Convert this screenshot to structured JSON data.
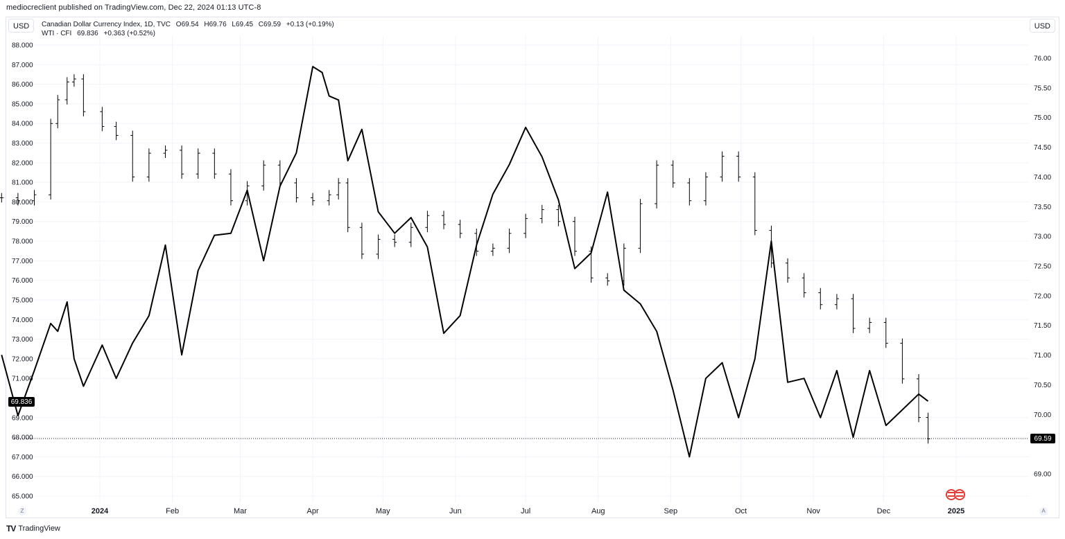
{
  "header": {
    "published": "mediocreclient published on TradingView.com, Dec 22, 2024 01:13 UTC-8"
  },
  "currency_left": "USD",
  "currency_right": "USD",
  "legend": {
    "line1": {
      "name": "Canadian Dollar Currency Index, 1D, TVC",
      "open": "O69.54",
      "high": "H69.76",
      "low": "L69.45",
      "close": "C69.59",
      "change": "+0.13 (+0.19%)"
    },
    "line2": {
      "name": "WTI · CFI",
      "last": "69.836",
      "change": "+0.363 (+0.52%)"
    }
  },
  "badges": {
    "left_value": "69.836",
    "right_value": "69.59"
  },
  "axis_buttons": {
    "left": "Z",
    "right": "A"
  },
  "footer": {
    "brand": "TradingView",
    "logo": "TV"
  },
  "colors": {
    "series": "#000000",
    "grid": "#f0f3fa",
    "badge_bg": "#000000",
    "badge_fg": "#ffffff",
    "flag_red": "#e53935"
  },
  "chart_data": {
    "type": "line",
    "title": "Canadian Dollar Currency Index, 1D, TVC",
    "x_labels": [
      "2024",
      "Feb",
      "Mar",
      "Apr",
      "May",
      "Jun",
      "Jul",
      "Aug",
      "Sep",
      "Oct",
      "Nov",
      "Dec",
      "2025"
    ],
    "left_axis": {
      "ticks": [
        "88.000",
        "87.000",
        "86.000",
        "85.000",
        "84.000",
        "83.000",
        "82.000",
        "81.000",
        "80.000",
        "79.000",
        "78.000",
        "77.000",
        "76.000",
        "75.000",
        "74.000",
        "73.000",
        "72.000",
        "71.000",
        "69.000",
        "68.000",
        "67.000",
        "66.000",
        "65.000"
      ],
      "range": [
        65,
        88
      ]
    },
    "right_axis": {
      "ticks": [
        "76.00",
        "75.50",
        "75.00",
        "74.50",
        "74.00",
        "73.50",
        "73.00",
        "72.50",
        "72.00",
        "71.50",
        "71.00",
        "70.50",
        "70.00",
        "69.00"
      ],
      "range": [
        68.6,
        76.3
      ]
    },
    "series": [
      {
        "name": "Canadian Dollar Currency Index",
        "axis": "right",
        "style": "ohlc-bars",
        "x": [
          "2023-11-20",
          "2023-11-27",
          "2023-12-04",
          "2023-12-11",
          "2023-12-14",
          "2023-12-18",
          "2023-12-21",
          "2023-12-25",
          "2024-01-02",
          "2024-01-08",
          "2024-01-15",
          "2024-01-22",
          "2024-01-29",
          "2024-02-05",
          "2024-02-12",
          "2024-02-19",
          "2024-02-26",
          "2024-03-04",
          "2024-03-11",
          "2024-03-18",
          "2024-03-25",
          "2024-04-01",
          "2024-04-08",
          "2024-04-12",
          "2024-04-16",
          "2024-04-22",
          "2024-04-29",
          "2024-05-06",
          "2024-05-13",
          "2024-05-20",
          "2024-05-27",
          "2024-06-03",
          "2024-06-10",
          "2024-06-17",
          "2024-06-24",
          "2024-07-01",
          "2024-07-08",
          "2024-07-15",
          "2024-07-22",
          "2024-07-29",
          "2024-08-05",
          "2024-08-12",
          "2024-08-19",
          "2024-08-26",
          "2024-09-02",
          "2024-09-09",
          "2024-09-16",
          "2024-09-23",
          "2024-09-30",
          "2024-10-07",
          "2024-10-14",
          "2024-10-21",
          "2024-10-28",
          "2024-11-04",
          "2024-11-11",
          "2024-11-18",
          "2024-11-25",
          "2024-12-02",
          "2024-12-09",
          "2024-12-16",
          "2024-12-20"
        ],
        "y": [
          73.65,
          73.6,
          73.7,
          74.9,
          75.3,
          75.6,
          75.65,
          75.1,
          74.85,
          74.7,
          74.0,
          74.4,
          74.45,
          74.05,
          74.4,
          74.05,
          73.6,
          73.85,
          74.2,
          73.9,
          73.65,
          73.6,
          73.7,
          73.9,
          73.15,
          72.7,
          72.95,
          72.9,
          73.15,
          73.35,
          73.2,
          73.05,
          72.75,
          72.8,
          73.05,
          73.3,
          73.45,
          73.25,
          72.75,
          72.3,
          72.25,
          72.8,
          73.55,
          74.2,
          73.9,
          73.6,
          74.0,
          74.35,
          74.0,
          73.1,
          72.55,
          72.3,
          72.05,
          71.85,
          71.95,
          71.45,
          71.55,
          71.2,
          70.6,
          69.95,
          69.59
        ]
      },
      {
        "name": "WTI · CFI",
        "axis": "left",
        "style": "line",
        "x": [
          "2023-11-20",
          "2023-11-27",
          "2023-12-04",
          "2023-12-11",
          "2023-12-14",
          "2023-12-18",
          "2023-12-21",
          "2023-12-25",
          "2024-01-02",
          "2024-01-08",
          "2024-01-15",
          "2024-01-22",
          "2024-01-29",
          "2024-02-05",
          "2024-02-12",
          "2024-02-19",
          "2024-02-26",
          "2024-03-04",
          "2024-03-11",
          "2024-03-18",
          "2024-03-25",
          "2024-04-01",
          "2024-04-05",
          "2024-04-08",
          "2024-04-12",
          "2024-04-16",
          "2024-04-22",
          "2024-04-29",
          "2024-05-06",
          "2024-05-13",
          "2024-05-20",
          "2024-05-27",
          "2024-06-03",
          "2024-06-10",
          "2024-06-17",
          "2024-06-24",
          "2024-07-01",
          "2024-07-08",
          "2024-07-15",
          "2024-07-22",
          "2024-07-29",
          "2024-08-05",
          "2024-08-12",
          "2024-08-19",
          "2024-08-26",
          "2024-09-02",
          "2024-09-09",
          "2024-09-16",
          "2024-09-23",
          "2024-09-30",
          "2024-10-07",
          "2024-10-14",
          "2024-10-21",
          "2024-10-28",
          "2024-11-04",
          "2024-11-11",
          "2024-11-18",
          "2024-11-25",
          "2024-12-02",
          "2024-12-09",
          "2024-12-16",
          "2024-12-20"
        ],
        "y": [
          72.2,
          69.1,
          71.4,
          73.8,
          73.4,
          74.9,
          72.0,
          70.6,
          72.7,
          71.0,
          72.8,
          74.2,
          77.8,
          72.2,
          76.5,
          78.3,
          78.4,
          80.6,
          77.0,
          80.8,
          82.5,
          86.9,
          86.6,
          85.4,
          85.2,
          82.1,
          83.7,
          79.5,
          78.4,
          79.2,
          77.7,
          73.3,
          74.2,
          77.8,
          80.4,
          81.9,
          83.8,
          82.3,
          80.1,
          76.6,
          77.4,
          80.5,
          75.5,
          74.8,
          73.4,
          70.4,
          67.0,
          71.0,
          71.8,
          69.0,
          72.0,
          78.0,
          70.8,
          71.0,
          69.0,
          71.4,
          68.0,
          71.4,
          68.6,
          69.4,
          70.2,
          69.836
        ]
      }
    ]
  }
}
